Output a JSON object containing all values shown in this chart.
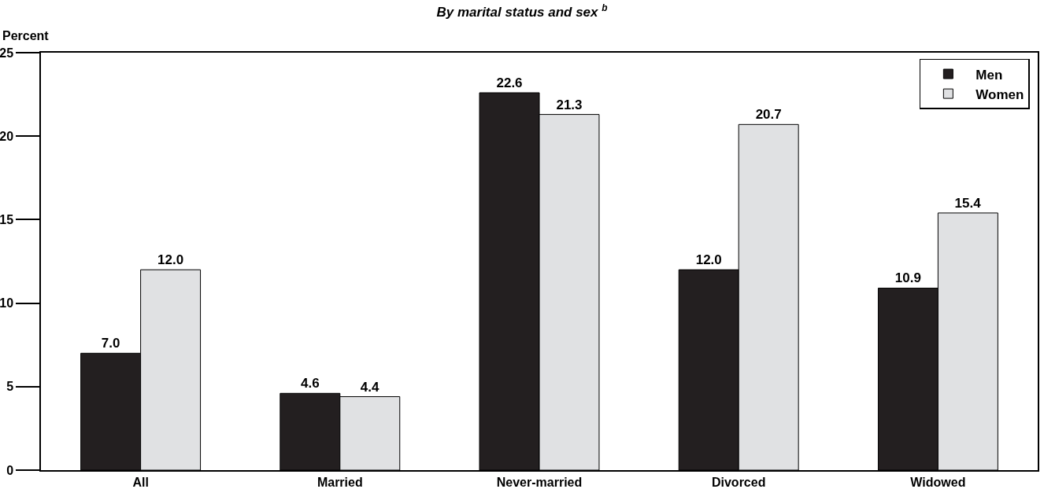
{
  "chart_data": {
    "type": "bar",
    "title": "By marital status and sex $^{b}$",
    "ylabel": "Percent",
    "categories": [
      "All",
      "Married",
      "Never-married",
      "Divorced",
      "Widowed"
    ],
    "series": [
      {
        "name": "Men",
        "color": "#231f20",
        "values": [
          7.0,
          4.6,
          22.6,
          12.0,
          10.9
        ],
        "value_labels": [
          "7.0",
          "4.6",
          "22.6",
          "12.0",
          "10.9"
        ]
      },
      {
        "name": "Women",
        "color": "#e0e1e3",
        "values": [
          12.0,
          4.4,
          21.3,
          20.7,
          15.4
        ],
        "value_labels": [
          "12.0",
          "4.4",
          "21.3",
          "20.7",
          "15.4"
        ]
      }
    ],
    "ylim": [
      0,
      25
    ],
    "yticks": [
      0,
      5,
      10,
      15,
      20,
      25
    ],
    "grid": false,
    "legend": "top right"
  }
}
